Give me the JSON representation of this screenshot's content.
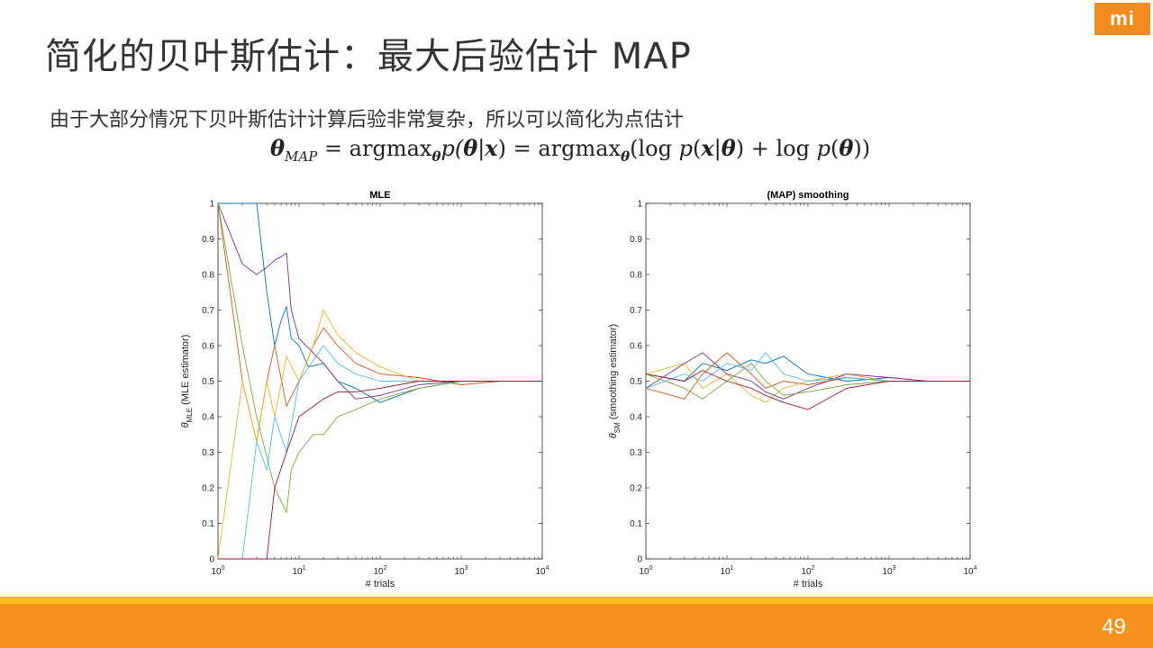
{
  "slide": {
    "title": "简化的贝叶斯估计：最大后验估计 MAP",
    "subtitle": "由于大部分情况下贝叶斯估计计算后验非常复杂，所以可以简化为点估计",
    "formula": {
      "lhs_theta": "θ",
      "lhs_sub": "MAP",
      "eq1": " = argmax",
      "sub1": "θ",
      "mid": "p(",
      "theta": "θ",
      "bar": "|",
      "x": "x",
      "close1": ") = argmax",
      "sub2": "θ",
      "rest1": "(log ",
      "p1": "p",
      "paren1": "(",
      "x2": "x",
      "bar2": "|",
      "theta2": "θ",
      "rest2": ") + log ",
      "p2": "p",
      "paren2": "(",
      "theta3": "θ",
      "rest3": "))"
    },
    "logo_text": "mi",
    "page_number": "49",
    "colors": {
      "orange": "#f5921f",
      "yellow": "#fbbd1b",
      "text": "#333333"
    }
  },
  "chart_data": [
    {
      "type": "line",
      "title": "MLE",
      "xlabel": "# trials",
      "ylabel_symbol": "θ",
      "ylabel_sub": "MLE",
      "ylabel_rest": " (MLE estimator)",
      "xscale": "log",
      "xlim": [
        1,
        10000
      ],
      "ylim": [
        0,
        1
      ],
      "xticks": [
        {
          "base": "10",
          "exp": "0"
        },
        {
          "base": "10",
          "exp": "1"
        },
        {
          "base": "10",
          "exp": "2"
        },
        {
          "base": "10",
          "exp": "3"
        },
        {
          "base": "10",
          "exp": "4"
        }
      ],
      "yticks": [
        "0",
        "0.1",
        "0.2",
        "0.3",
        "0.4",
        "0.5",
        "0.6",
        "0.7",
        "0.8",
        "0.9",
        "1"
      ],
      "series": [
        {
          "color": "#0072bd",
          "x": [
            1,
            2,
            3,
            4,
            5,
            6,
            7,
            8,
            10,
            13,
            20,
            30,
            50,
            100,
            300,
            1000,
            3000,
            10000
          ],
          "y": [
            1,
            1,
            1,
            0.75,
            0.6,
            0.67,
            0.71,
            0.62,
            0.6,
            0.54,
            0.55,
            0.5,
            0.48,
            0.44,
            0.48,
            0.5,
            0.5,
            0.5
          ]
        },
        {
          "color": "#d95319",
          "x": [
            1,
            2,
            3,
            4,
            5,
            7,
            10,
            15,
            20,
            30,
            50,
            100,
            300,
            1000,
            3000,
            10000
          ],
          "y": [
            1,
            0.5,
            0.33,
            0.5,
            0.6,
            0.43,
            0.5,
            0.6,
            0.65,
            0.6,
            0.55,
            0.52,
            0.51,
            0.49,
            0.5,
            0.5
          ]
        },
        {
          "color": "#edb120",
          "x": [
            1,
            2,
            3,
            4,
            5,
            7,
            10,
            15,
            20,
            30,
            50,
            100,
            300,
            1000,
            3000,
            10000
          ],
          "y": [
            0,
            0.5,
            0.33,
            0.5,
            0.4,
            0.57,
            0.5,
            0.6,
            0.7,
            0.63,
            0.58,
            0.54,
            0.5,
            0.5,
            0.5,
            0.5
          ]
        },
        {
          "color": "#7e2f8e",
          "x": [
            1,
            2,
            3,
            4,
            5,
            6,
            7,
            8,
            10,
            20,
            30,
            50,
            100,
            300,
            1000,
            3000,
            10000
          ],
          "y": [
            1,
            0.83,
            0.8,
            0.82,
            0.84,
            0.85,
            0.86,
            0.7,
            0.62,
            0.55,
            0.5,
            0.45,
            0.46,
            0.49,
            0.5,
            0.5,
            0.5
          ]
        },
        {
          "color": "#77ac30",
          "x": [
            1,
            2,
            3,
            5,
            7,
            8,
            10,
            15,
            20,
            30,
            50,
            100,
            300,
            1000,
            3000,
            10000
          ],
          "y": [
            1,
            0.6,
            0.4,
            0.2,
            0.13,
            0.25,
            0.3,
            0.35,
            0.35,
            0.4,
            0.42,
            0.45,
            0.48,
            0.5,
            0.5,
            0.5
          ]
        },
        {
          "color": "#4dbeee",
          "x": [
            1,
            2,
            3,
            4,
            5,
            7,
            10,
            20,
            30,
            50,
            100,
            300,
            1000,
            3000,
            10000
          ],
          "y": [
            0,
            0,
            0.33,
            0.25,
            0.4,
            0.3,
            0.5,
            0.6,
            0.55,
            0.52,
            0.5,
            0.5,
            0.5,
            0.5,
            0.5
          ]
        },
        {
          "color": "#a2142f",
          "x": [
            1,
            2,
            3,
            4,
            5,
            7,
            10,
            20,
            30,
            50,
            100,
            300,
            1000,
            3000,
            10000
          ],
          "y": [
            0,
            0,
            0,
            0,
            0.2,
            0.3,
            0.4,
            0.45,
            0.47,
            0.47,
            0.48,
            0.5,
            0.5,
            0.5,
            0.5
          ]
        }
      ]
    },
    {
      "type": "line",
      "title": "(MAP) smoothing",
      "xlabel": "# trials",
      "ylabel_symbol": "θ",
      "ylabel_sub": "SM",
      "ylabel_rest": " (smoothing estimator)",
      "xscale": "log",
      "xlim": [
        1,
        10000
      ],
      "ylim": [
        0,
        1
      ],
      "xticks": [
        {
          "base": "10",
          "exp": "0"
        },
        {
          "base": "10",
          "exp": "1"
        },
        {
          "base": "10",
          "exp": "2"
        },
        {
          "base": "10",
          "exp": "3"
        },
        {
          "base": "10",
          "exp": "4"
        }
      ],
      "yticks": [
        "0",
        "0.1",
        "0.2",
        "0.3",
        "0.4",
        "0.5",
        "0.6",
        "0.7",
        "0.8",
        "0.9",
        "1"
      ],
      "series": [
        {
          "color": "#0072bd",
          "x": [
            1,
            3,
            5,
            10,
            20,
            30,
            50,
            100,
            300,
            1000,
            3000,
            10000
          ],
          "y": [
            0.52,
            0.5,
            0.55,
            0.53,
            0.56,
            0.55,
            0.57,
            0.52,
            0.5,
            0.51,
            0.5,
            0.5
          ]
        },
        {
          "color": "#d95319",
          "x": [
            1,
            3,
            5,
            10,
            20,
            30,
            50,
            100,
            300,
            1000,
            3000,
            10000
          ],
          "y": [
            0.48,
            0.45,
            0.52,
            0.58,
            0.52,
            0.48,
            0.5,
            0.49,
            0.51,
            0.5,
            0.5,
            0.5
          ]
        },
        {
          "color": "#edb120",
          "x": [
            1,
            3,
            5,
            10,
            20,
            30,
            50,
            100,
            300,
            1000,
            3000,
            10000
          ],
          "y": [
            0.52,
            0.55,
            0.48,
            0.52,
            0.46,
            0.44,
            0.48,
            0.5,
            0.52,
            0.5,
            0.5,
            0.5
          ]
        },
        {
          "color": "#7e2f8e",
          "x": [
            1,
            3,
            5,
            10,
            20,
            30,
            50,
            100,
            300,
            1000,
            3000,
            10000
          ],
          "y": [
            0.48,
            0.55,
            0.58,
            0.52,
            0.5,
            0.47,
            0.45,
            0.48,
            0.52,
            0.51,
            0.5,
            0.5
          ]
        },
        {
          "color": "#77ac30",
          "x": [
            1,
            3,
            5,
            10,
            20,
            30,
            50,
            100,
            300,
            1000,
            3000,
            10000
          ],
          "y": [
            0.52,
            0.48,
            0.45,
            0.5,
            0.55,
            0.5,
            0.46,
            0.47,
            0.49,
            0.5,
            0.5,
            0.5
          ]
        },
        {
          "color": "#4dbeee",
          "x": [
            1,
            3,
            5,
            10,
            20,
            30,
            50,
            100,
            300,
            1000,
            3000,
            10000
          ],
          "y": [
            0.48,
            0.52,
            0.5,
            0.55,
            0.53,
            0.58,
            0.52,
            0.5,
            0.51,
            0.5,
            0.5,
            0.5
          ]
        },
        {
          "color": "#a2142f",
          "x": [
            1,
            3,
            5,
            10,
            20,
            30,
            50,
            100,
            300,
            1000,
            3000,
            10000
          ],
          "y": [
            0.52,
            0.5,
            0.53,
            0.5,
            0.48,
            0.46,
            0.44,
            0.42,
            0.48,
            0.5,
            0.5,
            0.5
          ]
        }
      ]
    }
  ]
}
